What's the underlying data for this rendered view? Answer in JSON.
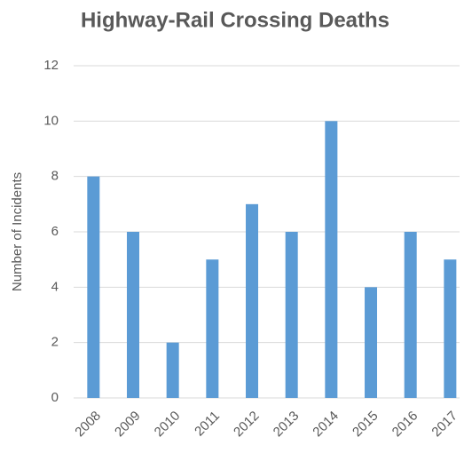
{
  "chart_data": {
    "type": "bar",
    "title": "Highway-Rail Crossing Deaths",
    "y_label": "Number of Incidents",
    "categories": [
      "2008",
      "2009",
      "2010",
      "2011",
      "2012",
      "2013",
      "2014",
      "2015",
      "2016",
      "2017"
    ],
    "values": [
      8,
      6,
      2,
      5,
      7,
      6,
      10,
      4,
      6,
      5
    ],
    "color": "#5b9bd5",
    "ylim": [
      0,
      12
    ],
    "yticks": [
      0,
      2,
      4,
      6,
      8,
      10,
      12
    ],
    "grid": true
  }
}
